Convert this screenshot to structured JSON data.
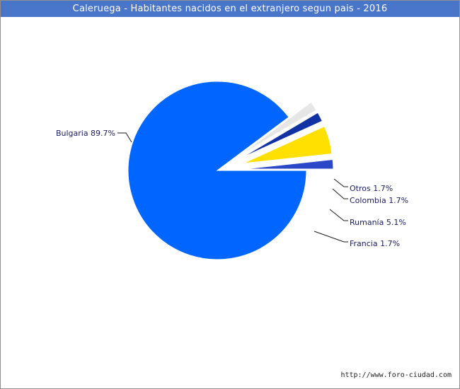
{
  "chart_data": {
    "type": "pie",
    "title": "Caleruega - Habitantes nacidos en el extranjero segun pais - 2016",
    "slices": [
      {
        "label": "Bulgaria",
        "value": 89.7,
        "display": "Bulgaria 89.7%",
        "color": "#0066ff"
      },
      {
        "label": "Otros",
        "value": 1.7,
        "display": "Otros 1.7%",
        "color": "#e6e6e6"
      },
      {
        "label": "Colombia",
        "value": 1.7,
        "display": "Colombia 1.7%",
        "color": "#1232a4"
      },
      {
        "label": "Rumanía",
        "value": 5.1,
        "display": "Rumanía 5.1%",
        "color": "#ffe000"
      },
      {
        "label": "Francia",
        "value": 1.7,
        "display": "Francia 1.7%",
        "color": "#2a48c8"
      }
    ]
  },
  "footer": {
    "credit": "http://www.foro-ciudad.com"
  }
}
